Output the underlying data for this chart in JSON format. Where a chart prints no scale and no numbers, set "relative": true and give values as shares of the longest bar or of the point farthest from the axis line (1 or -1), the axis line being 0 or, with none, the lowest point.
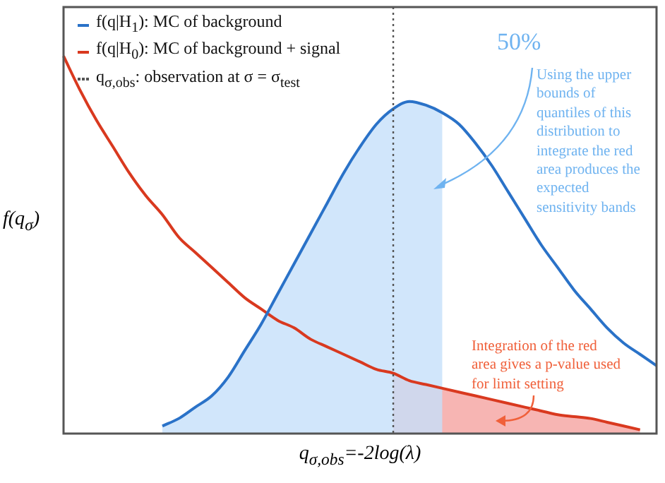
{
  "chart_data": {
    "type": "line",
    "relative": true,
    "xlabel": "q$_{σ,obs}$=-2log(λ)",
    "ylabel": "f(q$_{σ}$)",
    "categories": [
      null,
      null,
      null,
      null,
      null,
      null,
      null,
      null,
      null,
      null,
      null,
      null,
      null,
      null,
      null,
      null,
      null,
      null,
      null,
      null,
      null,
      null,
      null,
      null,
      null,
      null,
      null,
      null,
      null,
      null,
      null,
      null,
      null,
      null,
      null,
      null,
      null
    ],
    "series": [
      {
        "type": "area",
        "color": "#c6e0fa",
        "values": [
          null,
          null,
          null,
          null,
          null,
          null,
          0.02,
          0.04,
          0.07,
          0.1,
          0.15,
          0.22,
          0.29,
          0.37,
          0.45,
          0.53,
          0.61,
          0.69,
          0.76,
          0.82,
          0.86,
          0.88,
          0.87,
          0.85,
          null,
          null,
          null,
          null,
          null,
          null,
          null,
          null,
          null,
          null,
          null,
          null,
          null
        ]
      },
      {
        "type": "area",
        "color": "#f5a3a0",
        "values": [
          null,
          null,
          null,
          null,
          null,
          null,
          null,
          null,
          null,
          null,
          null,
          null,
          null,
          null,
          null,
          null,
          null,
          null,
          null,
          null,
          0.16,
          0.14,
          0.13,
          0.12,
          0.11,
          0.1,
          0.09,
          0.08,
          0.07,
          0.06,
          0.05,
          0.045,
          0.04,
          0.03,
          0.02,
          0.01,
          null
        ]
      },
      {
        "type": "line",
        "name": "f(q|H$_{1}$): MC of background",
        "color": "#2a72c8",
        "values": [
          null,
          null,
          null,
          null,
          null,
          null,
          0.02,
          0.04,
          0.07,
          0.1,
          0.15,
          0.22,
          0.29,
          0.37,
          0.45,
          0.53,
          0.61,
          0.69,
          0.76,
          0.82,
          0.86,
          0.88,
          0.87,
          0.85,
          0.82,
          0.77,
          0.71,
          0.64,
          0.57,
          0.5,
          0.44,
          0.38,
          0.33,
          0.28,
          0.24,
          0.21,
          0.18
        ]
      },
      {
        "type": "line",
        "name": "f(q|H$_{0}$): MC of background + signal",
        "color": "#d9391f",
        "values": [
          1,
          0.91,
          0.83,
          0.76,
          0.69,
          0.63,
          0.58,
          0.52,
          0.48,
          0.44,
          0.4,
          0.36,
          0.33,
          0.3,
          0.28,
          0.25,
          0.23,
          0.21,
          0.19,
          0.17,
          0.16,
          0.14,
          0.13,
          0.12,
          0.11,
          0.1,
          0.09,
          0.08,
          0.07,
          0.06,
          0.05,
          0.045,
          0.04,
          0.03,
          0.02,
          0.01,
          null
        ]
      }
    ],
    "annotations": [
      "50%",
      "Using the upper bounds of quantiles of this distribution to integrate the red area produces the expected sensitivity bands",
      "Integration of the red area gives a p-value used for limit setting",
      "q$_{σ,obs}$: observation at σ = σ$_{test}$"
    ],
    "legend": "top left",
    "marker": "none"
  }
}
